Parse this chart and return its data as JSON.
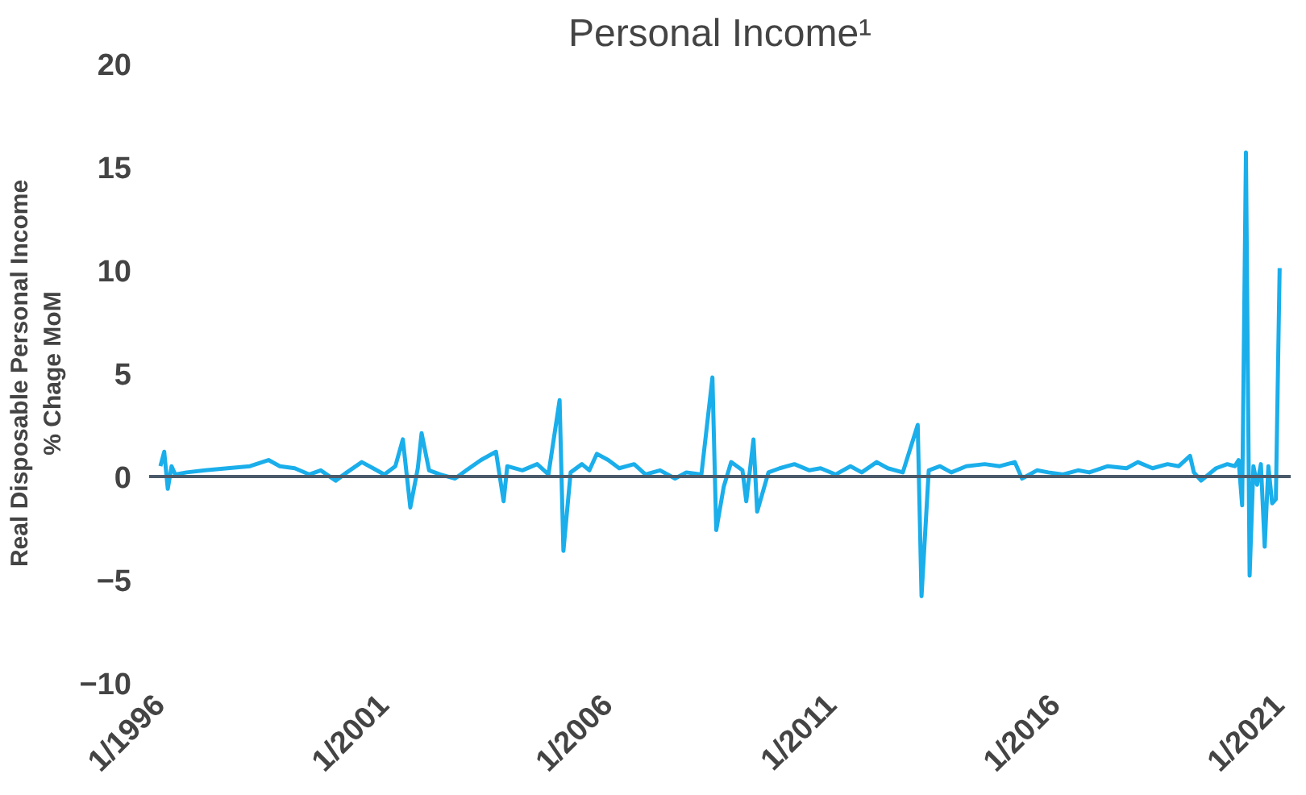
{
  "chart_data": {
    "type": "line",
    "title": "Personal Income¹",
    "ylabel": "Real Disposable Personal Income\n% Chage MoM",
    "x": [
      "1996-01",
      "1996-02",
      "1996-03",
      "1996-04",
      "1996-05",
      "1996-08",
      "1997-01",
      "1997-07",
      "1998-01",
      "1998-06",
      "1998-09",
      "1999-01",
      "1999-05",
      "1999-08",
      "1999-12",
      "2000-03",
      "2000-07",
      "2000-10",
      "2001-01",
      "2001-04",
      "2001-06",
      "2001-08",
      "2001-10",
      "2001-11",
      "2002-01",
      "2002-04",
      "2002-08",
      "2002-11",
      "2003-03",
      "2003-07",
      "2003-09",
      "2003-10",
      "2004-02",
      "2004-06",
      "2004-09",
      "2004-12",
      "2005-01",
      "2005-03",
      "2005-06",
      "2005-08",
      "2005-10",
      "2006-01",
      "2006-04",
      "2006-08",
      "2006-11",
      "2007-03",
      "2007-07",
      "2007-10",
      "2008-02",
      "2008-05",
      "2008-06",
      "2008-08",
      "2008-10",
      "2009-01",
      "2009-02",
      "2009-04",
      "2009-05",
      "2009-08",
      "2009-11",
      "2010-03",
      "2010-07",
      "2010-10",
      "2011-02",
      "2011-06",
      "2011-09",
      "2012-01",
      "2012-04",
      "2012-08",
      "2012-12",
      "2013-01",
      "2013-03",
      "2013-06",
      "2013-09",
      "2014-01",
      "2014-06",
      "2014-10",
      "2015-02",
      "2015-04",
      "2015-08",
      "2015-11",
      "2016-03",
      "2016-07",
      "2016-10",
      "2017-03",
      "2017-08",
      "2017-11",
      "2018-03",
      "2018-07",
      "2018-10",
      "2019-01",
      "2019-02",
      "2019-04",
      "2019-08",
      "2019-11",
      "2020-01",
      "2020-02",
      "2020-03",
      "2020-04",
      "2020-05",
      "2020-06",
      "2020-07",
      "2020-08",
      "2020-09",
      "2020-10",
      "2020-11",
      "2020-12",
      "2021-01"
    ],
    "series": [
      {
        "color": "#1aaeeb",
        "values": [
          0.5,
          1.2,
          -0.6,
          0.5,
          0.1,
          0.2,
          0.3,
          0.4,
          0.5,
          0.8,
          0.5,
          0.4,
          0.1,
          0.3,
          -0.2,
          0.2,
          0.7,
          0.4,
          0.1,
          0.5,
          1.8,
          -1.5,
          0.4,
          2.1,
          0.3,
          0.1,
          -0.1,
          0.3,
          0.8,
          1.2,
          -1.2,
          0.5,
          0.3,
          0.6,
          0.1,
          3.7,
          -3.6,
          0.2,
          0.6,
          0.3,
          1.1,
          0.8,
          0.4,
          0.6,
          0.1,
          0.3,
          -0.1,
          0.2,
          0.1,
          4.8,
          -2.6,
          -0.5,
          0.7,
          0.3,
          -1.2,
          1.8,
          -1.7,
          0.2,
          0.4,
          0.6,
          0.3,
          0.4,
          0.1,
          0.5,
          0.2,
          0.7,
          0.4,
          0.2,
          2.5,
          -5.8,
          0.3,
          0.5,
          0.2,
          0.5,
          0.6,
          0.5,
          0.7,
          -0.1,
          0.3,
          0.2,
          0.1,
          0.3,
          0.2,
          0.5,
          0.4,
          0.7,
          0.4,
          0.6,
          0.5,
          1.0,
          0.2,
          -0.2,
          0.4,
          0.6,
          0.5,
          0.8,
          -1.4,
          15.7,
          -4.8,
          0.5,
          -0.4,
          0.6,
          -3.4,
          0.5,
          -1.3,
          -1.1,
          10.1
        ]
      }
    ],
    "xlim": [
      "1995-10",
      "2021-04"
    ],
    "ylim": [
      -10,
      20
    ],
    "xticks": [
      {
        "value": "1996-01",
        "label": "1/1996"
      },
      {
        "value": "2001-01",
        "label": "1/2001"
      },
      {
        "value": "2006-01",
        "label": "1/2006"
      },
      {
        "value": "2011-01",
        "label": "1/2011"
      },
      {
        "value": "2016-01",
        "label": "1/2016"
      },
      {
        "value": "2021-01",
        "label": "1/2021"
      }
    ],
    "yticks": [
      -10,
      -5,
      0,
      5,
      10,
      15,
      20
    ],
    "ref_lines": [
      {
        "axis": "y",
        "value": 0,
        "label": null,
        "color": "#4a5a6a"
      }
    ],
    "grid": false
  }
}
